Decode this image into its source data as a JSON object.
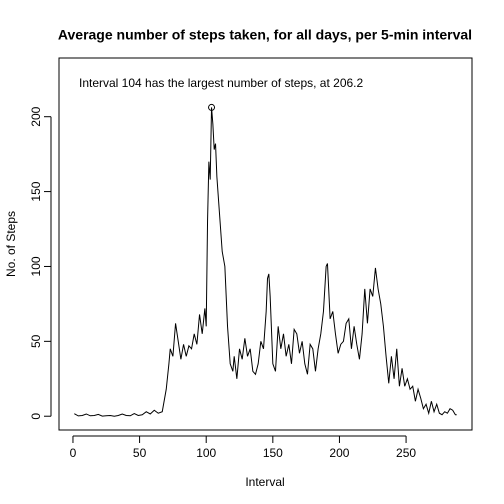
{
  "chart_data": {
    "type": "line",
    "title": "Average number of steps taken, for all days, per 5-min interval",
    "x_label": "Interval",
    "y_label": "No. of Steps",
    "annotation": {
      "text": "Interval 104 has the largest number of steps, at 206.2",
      "x": 104,
      "y": 206.2
    },
    "color": "#000000",
    "xlim": [
      -10.48,
      299.48
    ],
    "ylim": [
      -9.2,
      239.2
    ],
    "xticks": [
      0,
      50,
      100,
      150,
      200,
      250
    ],
    "yticks": [
      0,
      50,
      100,
      150,
      200
    ],
    "x": [
      1,
      4,
      7,
      10,
      13,
      16,
      19,
      22,
      25,
      28,
      31,
      34,
      37,
      40,
      43,
      46,
      49,
      52,
      55,
      58,
      61,
      64,
      67,
      70,
      72,
      73,
      75,
      77,
      79,
      81,
      83,
      85,
      87,
      89,
      91,
      93,
      95,
      97,
      99,
      100,
      101,
      102,
      103,
      104,
      105,
      106,
      107,
      108,
      110,
      112,
      114,
      116,
      118,
      120,
      121,
      123,
      125,
      127,
      129,
      131,
      133,
      135,
      137,
      139,
      141,
      143,
      145,
      146,
      147,
      148,
      150,
      152,
      154,
      156,
      158,
      160,
      162,
      164,
      166,
      168,
      170,
      172,
      174,
      176,
      178,
      180,
      182,
      184,
      186,
      188,
      190,
      191,
      193,
      195,
      197,
      199,
      201,
      203,
      205,
      207,
      209,
      211,
      213,
      215,
      217,
      219,
      221,
      223,
      225,
      227,
      229,
      231,
      233,
      235,
      237,
      239,
      241,
      243,
      245,
      247,
      249,
      251,
      253,
      255,
      257,
      259,
      261,
      263,
      265,
      267,
      269,
      271,
      273,
      275,
      277,
      279,
      281,
      283,
      285,
      287,
      288
    ],
    "values": [
      1.7,
      0.2,
      0.5,
      1.5,
      0.3,
      0.5,
      1.2,
      0.1,
      0.3,
      0.5,
      0,
      0.5,
      1.5,
      0.5,
      0.3,
      1.8,
      0.5,
      1,
      3,
      1.5,
      4,
      2,
      3,
      18,
      35,
      45,
      40,
      62,
      50,
      38,
      48,
      40,
      47,
      45,
      55,
      48,
      68,
      55,
      72,
      60,
      130,
      170,
      158,
      206.2,
      195,
      178,
      182,
      160,
      135,
      110,
      100,
      60,
      35,
      30,
      40,
      25,
      45,
      38,
      52,
      40,
      45,
      30,
      28,
      35,
      50,
      45,
      70,
      92,
      95,
      80,
      35,
      30,
      60,
      45,
      55,
      40,
      48,
      35,
      58,
      55,
      42,
      50,
      35,
      28,
      48,
      45,
      30,
      45,
      55,
      70,
      100,
      102,
      65,
      70,
      55,
      42,
      48,
      50,
      62,
      65,
      45,
      60,
      48,
      38,
      55,
      85,
      62,
      85,
      80,
      99,
      85,
      75,
      60,
      40,
      22,
      40,
      25,
      45,
      20,
      32,
      20,
      25,
      18,
      20,
      10,
      18,
      12,
      5,
      8,
      2,
      10,
      3,
      8,
      2,
      1,
      3,
      2,
      5,
      4,
      1,
      1
    ]
  }
}
